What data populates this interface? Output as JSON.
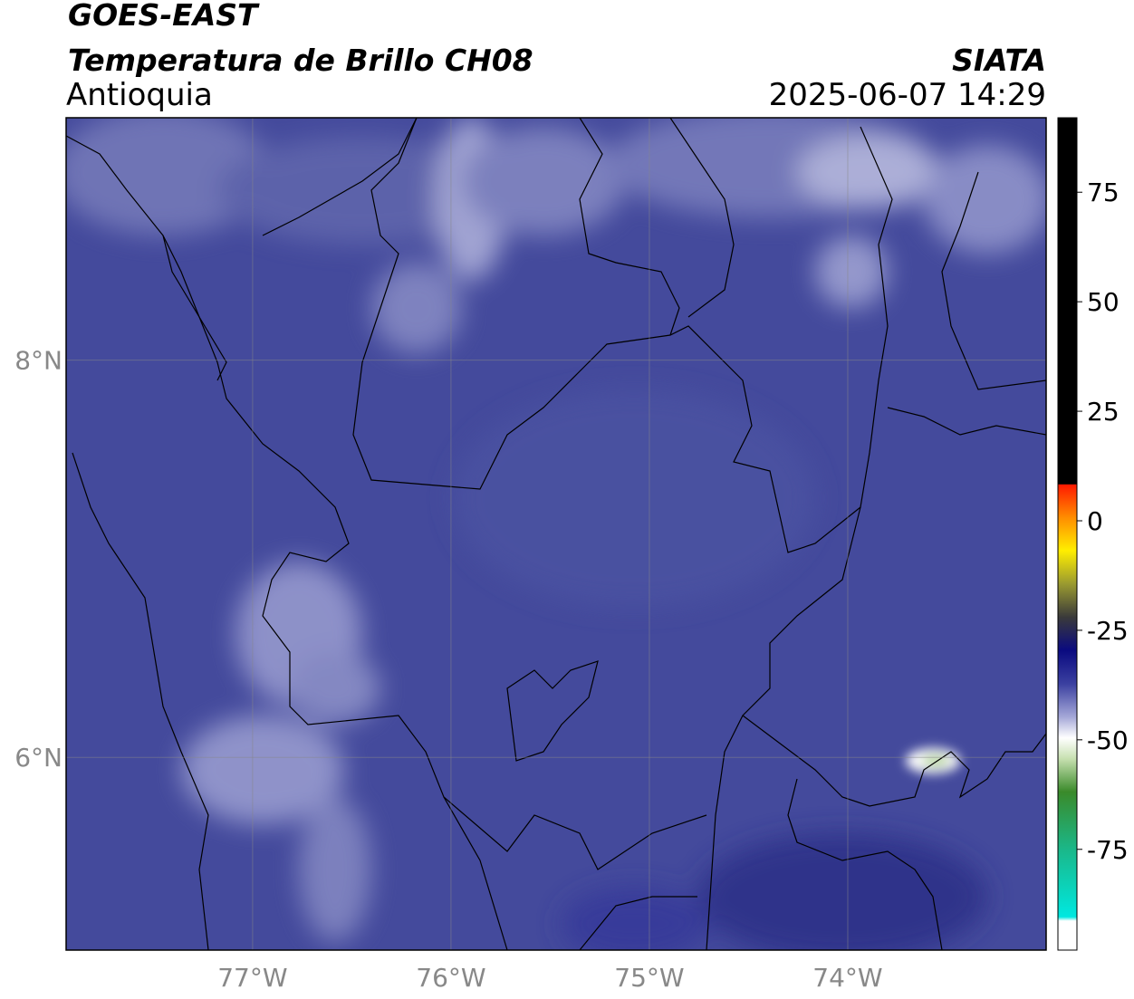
{
  "header": {
    "title": "GOES-EAST",
    "subtitle": "Temperatura de Brillo CH08",
    "region": "Antioquia",
    "source": "SIATA",
    "timestamp": "2025-06-07 14:29"
  },
  "map": {
    "lonlim": [
      -77.94,
      -73.0
    ],
    "latlim": [
      5.03,
      9.22
    ],
    "lon_ticks": [
      {
        "value": -77,
        "label": "77°W"
      },
      {
        "value": -76,
        "label": "76°W"
      },
      {
        "value": -75,
        "label": "75°W"
      },
      {
        "value": -74,
        "label": "74°W"
      }
    ],
    "lat_ticks": [
      {
        "value": 8,
        "label": "8°N"
      },
      {
        "value": 6,
        "label": "6°N"
      }
    ]
  },
  "colorbar": {
    "lim": [
      -98,
      92
    ],
    "ticks": [
      75,
      50,
      25,
      0,
      -25,
      -50,
      -75
    ]
  }
}
